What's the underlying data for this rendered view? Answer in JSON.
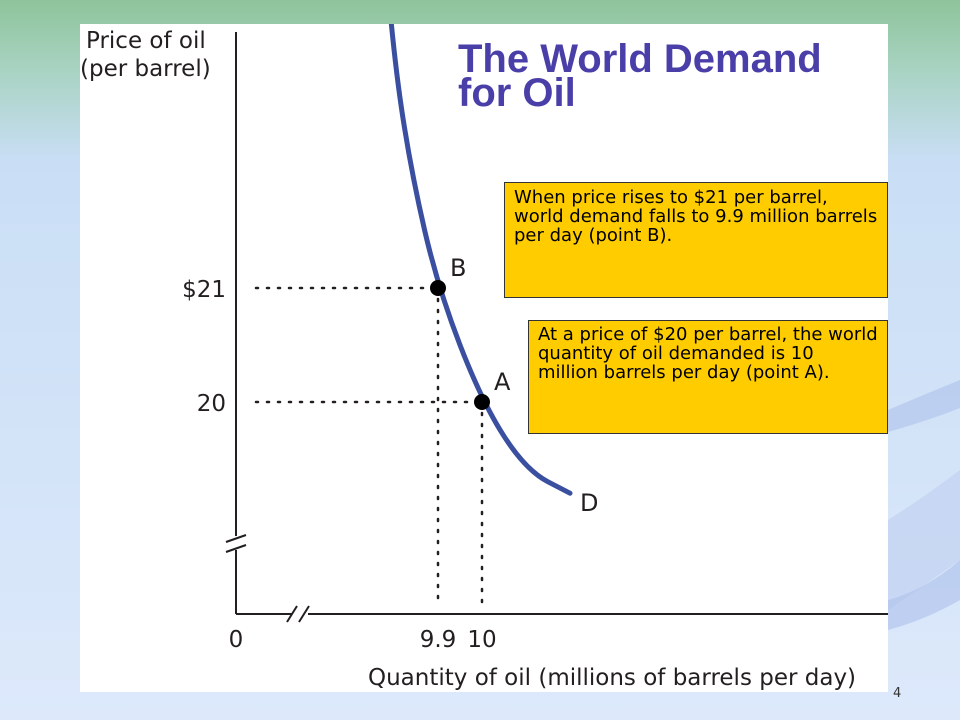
{
  "slide": {
    "title": "The World Demand\nfor Oil",
    "number": "4"
  },
  "chart_data": {
    "type": "line",
    "title": "The World Demand for Oil",
    "ylabel_lines": [
      "Price of oil",
      "(per barrel)"
    ],
    "xlabel": "Quantity of oil (millions of barrels per day)",
    "x_ticks": [
      {
        "label": "0",
        "value": 0
      },
      {
        "label": "9.9",
        "value": 9.9
      },
      {
        "label": "10",
        "value": 10
      }
    ],
    "y_ticks": [
      {
        "label": "$21",
        "value": 21
      },
      {
        "label": "20",
        "value": 20
      }
    ],
    "axis_breaks": [
      "x",
      "y"
    ],
    "series": [
      {
        "name": "D",
        "points": [
          {
            "x": 9.77,
            "y": 24.4
          },
          {
            "x": 9.8,
            "y": 23.0
          },
          {
            "x": 9.84,
            "y": 22.0
          },
          {
            "x": 9.9,
            "y": 21.0
          },
          {
            "x": 10.0,
            "y": 20.0
          },
          {
            "x": 10.1,
            "y": 19.4
          },
          {
            "x": 10.2,
            "y": 19.2
          }
        ]
      }
    ],
    "labeled_points": [
      {
        "label": "B",
        "x": 9.9,
        "y": 21
      },
      {
        "label": "A",
        "x": 10,
        "y": 20
      }
    ],
    "grid": false
  },
  "callouts": {
    "b_text": "When price rises to $21 per barrel, world demand falls to 9.9 million barrels per day (point B).",
    "a_text": "At a price of $20 per barrel, the world quantity of oil demanded is 10 million barrels per day (point A)."
  },
  "colors": {
    "curve": "#3a4fa0",
    "title": "#4a3fa8",
    "callout_fill": "#ffcc00",
    "panel": "#ffffff"
  }
}
